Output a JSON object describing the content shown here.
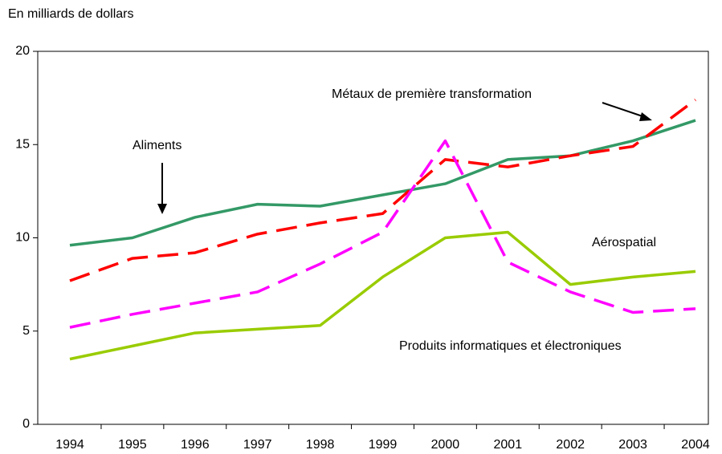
{
  "chart_data": {
    "type": "line",
    "y_axis_label": "En milliards de dollars",
    "categories": [
      "1994",
      "1995",
      "1996",
      "1997",
      "1998",
      "1999",
      "2000",
      "2001",
      "2002",
      "2003",
      "2004"
    ],
    "ylim": [
      0,
      20
    ],
    "yticks": [
      0,
      5,
      10,
      15,
      20
    ],
    "series": [
      {
        "name": "Aliments",
        "color": "#339966",
        "dash": false,
        "values": [
          9.6,
          10.0,
          11.1,
          11.8,
          11.7,
          12.3,
          12.9,
          14.2,
          14.4,
          15.2,
          16.3
        ]
      },
      {
        "name": "Métaux de première transformation",
        "color": "#ff0000",
        "dash": true,
        "values": [
          7.7,
          8.9,
          9.2,
          10.2,
          10.8,
          11.3,
          14.2,
          13.8,
          14.4,
          14.9,
          17.4
        ]
      },
      {
        "name": "Produits informatiques et électroniques",
        "color": "#ff00ff",
        "dash": true,
        "values": [
          5.2,
          5.9,
          6.5,
          7.1,
          8.6,
          10.3,
          15.2,
          8.7,
          7.1,
          6.0,
          6.2
        ]
      },
      {
        "name": "Aérospatial",
        "color": "#99cc00",
        "dash": false,
        "values": [
          3.5,
          4.2,
          4.9,
          5.1,
          5.3,
          7.9,
          10.0,
          10.3,
          7.5,
          7.9,
          8.2
        ]
      }
    ]
  }
}
